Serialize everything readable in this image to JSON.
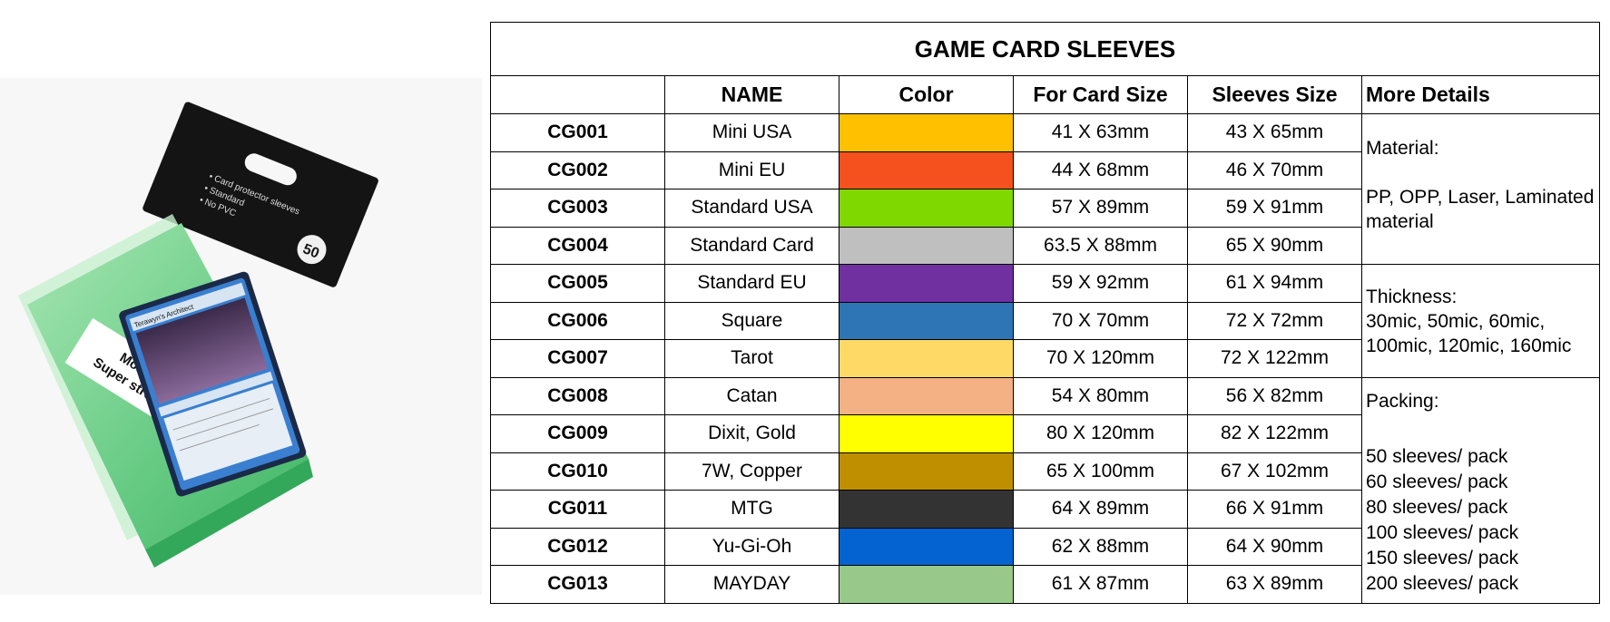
{
  "photo": {
    "package_text_lines": [
      "• Card protector sleeves",
      "• Standard",
      "• No PVC"
    ],
    "package_count": "50",
    "sticker_text_lines": [
      "More flat",
      "Super strength"
    ],
    "card_title": "Terawyn's Architect",
    "colors": {
      "sleeve": "#6fcf8a",
      "sleeve_dark": "#3fb565",
      "package": "#141414",
      "card_frame": "#1a2a48",
      "card_border": "#3a7fd0"
    }
  },
  "table": {
    "title": "GAME CARD SLEEVES",
    "headers": {
      "code": "",
      "name": "NAME",
      "color": "Color",
      "card_size": "For Card Size",
      "sleeve_size": "Sleeves Size",
      "details": "More Details"
    },
    "rows": [
      {
        "code": "CG001",
        "name": "Mini USA",
        "color": "#FFC000",
        "card_size": "41 X 63mm",
        "sleeve_size": "43 X 65mm"
      },
      {
        "code": "CG002",
        "name": "Mini EU",
        "color": "#F4511E",
        "card_size": "44 X 68mm",
        "sleeve_size": "46 X 70mm"
      },
      {
        "code": "CG003",
        "name": "Standard USA",
        "color": "#7FD800",
        "card_size": "57 X 89mm",
        "sleeve_size": "59 X 91mm"
      },
      {
        "code": "CG004",
        "name": "Standard Card",
        "color": "#BFBFBF",
        "card_size": "63.5 X 88mm",
        "sleeve_size": "65 X 90mm"
      },
      {
        "code": "CG005",
        "name": "Standard EU",
        "color": "#7030A0",
        "card_size": "59 X 92mm",
        "sleeve_size": "61 X 94mm"
      },
      {
        "code": "CG006",
        "name": "Square",
        "color": "#2E75B6",
        "card_size": "70 X 70mm",
        "sleeve_size": "72 X 72mm"
      },
      {
        "code": "CG007",
        "name": "Tarot",
        "color": "#FFD966",
        "card_size": "70 X 120mm",
        "sleeve_size": "72 X 122mm"
      },
      {
        "code": "CG008",
        "name": "Catan",
        "color": "#F4B183",
        "card_size": "54 X 80mm",
        "sleeve_size": "56 X 82mm"
      },
      {
        "code": "CG009",
        "name": "Dixit, Gold",
        "color": "#FFFF00",
        "card_size": "80 X 120mm",
        "sleeve_size": "82 X 122mm"
      },
      {
        "code": "CG010",
        "name": "7W, Copper",
        "color": "#BF8F00",
        "card_size": "65 X 100mm",
        "sleeve_size": "67 X 102mm"
      },
      {
        "code": "CG011",
        "name": "MTG",
        "color": "#333333",
        "card_size": "64 X 89mm",
        "sleeve_size": "66 X 91mm"
      },
      {
        "code": "CG012",
        "name": "Yu-Gi-Oh",
        "color": "#0563D1",
        "card_size": "62 X 88mm",
        "sleeve_size": "64 X 90mm"
      },
      {
        "code": "CG013",
        "name": "MAYDAY",
        "color": "#98C98A",
        "card_size": "61 X 87mm",
        "sleeve_size": "63 X 89mm"
      }
    ],
    "details": {
      "material_label": "Material:",
      "material_value": "PP, OPP, Laser, Laminated material",
      "thickness_label": "Thickness:",
      "thickness_value": "30mic, 50mic, 60mic, 100mic, 120mic, 160mic",
      "packing_label": "Packing:",
      "packing_values": [
        "50 sleeves/ pack",
        "60 sleeves/ pack",
        "80 sleeves/ pack",
        "100 sleeves/ pack",
        "150 sleeves/ pack",
        "200 sleeves/ pack"
      ]
    }
  }
}
